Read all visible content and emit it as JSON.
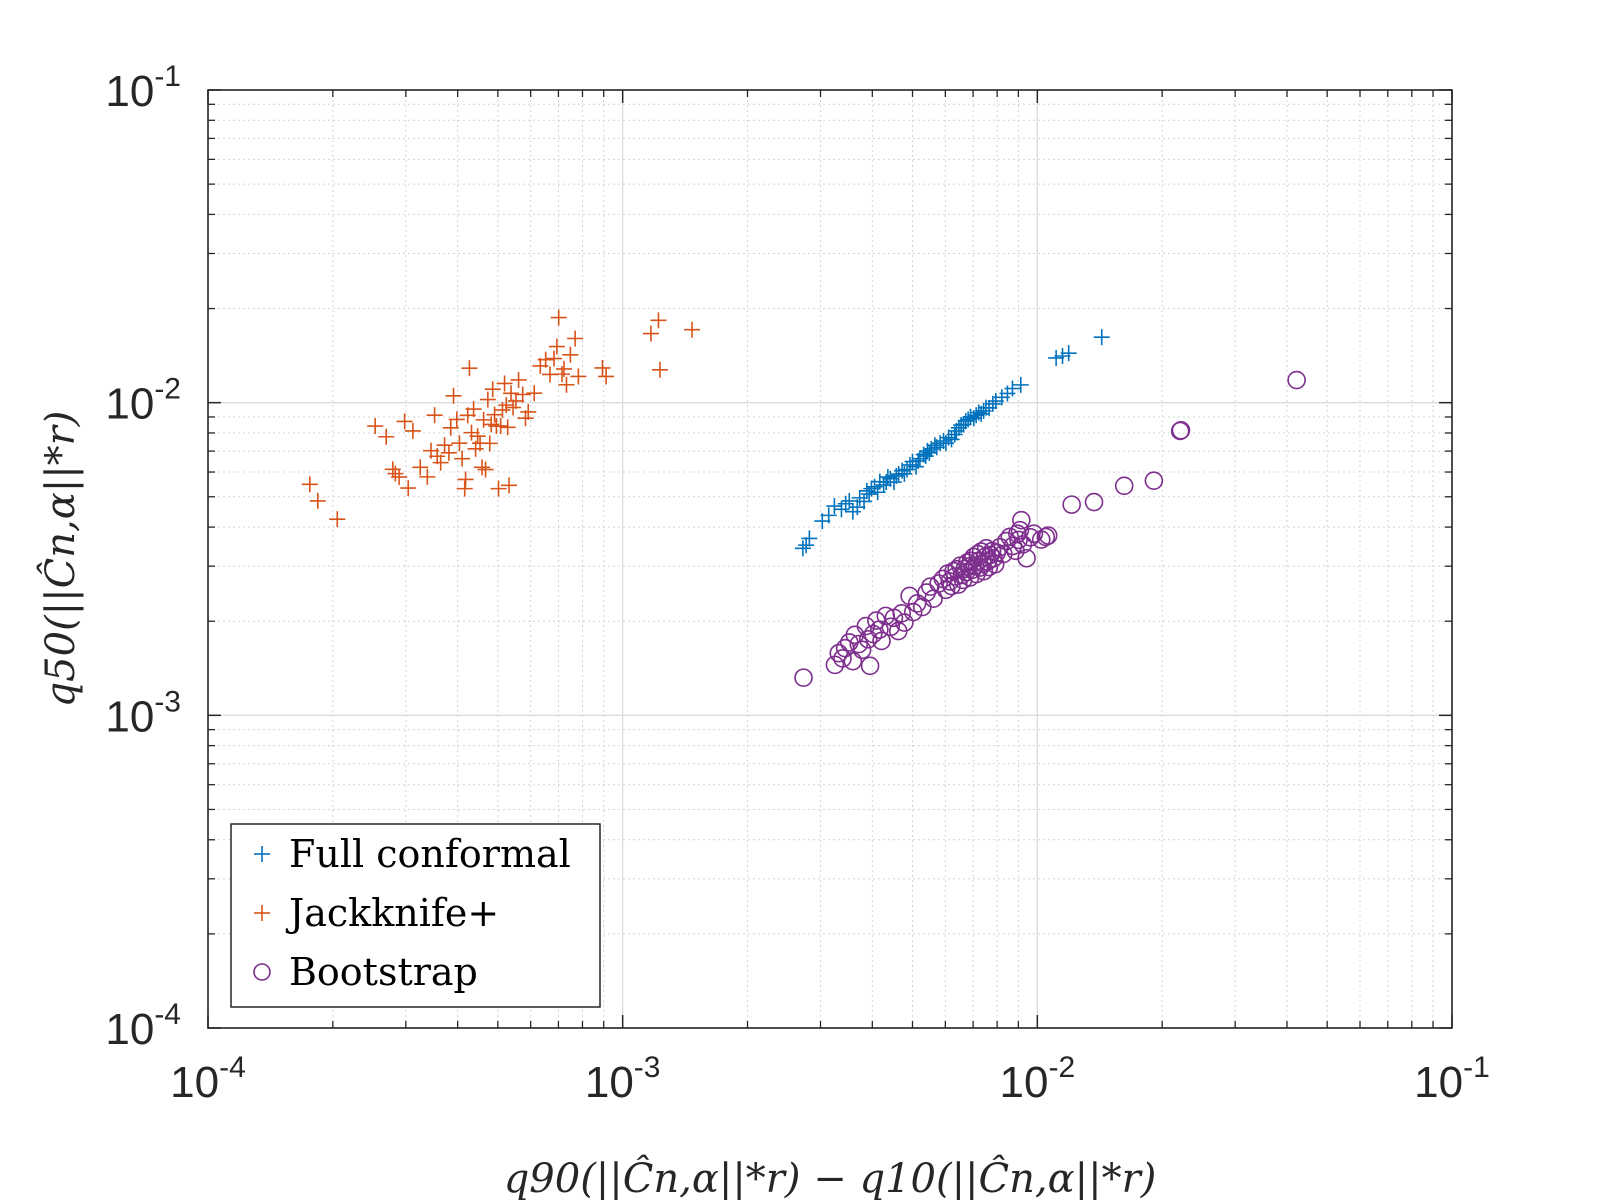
{
  "chart_data": {
    "type": "scatter",
    "xscale": "log",
    "yscale": "log",
    "xlim": [
      0.0001,
      0.1
    ],
    "ylim": [
      0.0001,
      0.1
    ],
    "grid": true,
    "minor_grid": true,
    "legend_position": "bottom-left",
    "xlabel": "q90(||Ĉn,α||*r) − q10(||Ĉn,α||*r)",
    "ylabel": "q50(||Ĉn,α||*r)",
    "x_ticks": [
      {
        "value": 0.0001,
        "mantissa": "10",
        "exponent": "-4"
      },
      {
        "value": 0.001,
        "mantissa": "10",
        "exponent": "-3"
      },
      {
        "value": 0.01,
        "mantissa": "10",
        "exponent": "-2"
      },
      {
        "value": 0.1,
        "mantissa": "10",
        "exponent": "-1"
      }
    ],
    "y_ticks": [
      {
        "value": 0.0001,
        "mantissa": "10",
        "exponent": "-4"
      },
      {
        "value": 0.001,
        "mantissa": "10",
        "exponent": "-3"
      },
      {
        "value": 0.01,
        "mantissa": "10",
        "exponent": "-2"
      },
      {
        "value": 0.1,
        "mantissa": "10",
        "exponent": "-1"
      }
    ],
    "series": [
      {
        "name": "Full conformal",
        "marker": "plus",
        "color": "#0072BD",
        "x": [
          0.00272,
          0.00277,
          0.00282,
          0.00303,
          0.00314,
          0.00324,
          0.00337,
          0.00345,
          0.00352,
          0.00359,
          0.00368,
          0.00373,
          0.00382,
          0.00388,
          0.00393,
          0.00398,
          0.00405,
          0.00412,
          0.00417,
          0.00426,
          0.00432,
          0.00436,
          0.00442,
          0.00451,
          0.00457,
          0.00463,
          0.00472,
          0.00478,
          0.00485,
          0.00493,
          0.005,
          0.0051,
          0.00516,
          0.00521,
          0.00532,
          0.00538,
          0.00543,
          0.00549,
          0.00555,
          0.00566,
          0.00572,
          0.00583,
          0.00594,
          0.00602,
          0.00611,
          0.00621,
          0.00632,
          0.00638,
          0.00647,
          0.00655,
          0.00664,
          0.00672,
          0.00681,
          0.0069,
          0.00703,
          0.00712,
          0.00722,
          0.00732,
          0.00742,
          0.00752,
          0.00765,
          0.00781,
          0.00794,
          0.00821,
          0.00847,
          0.00871,
          0.00912,
          0.0111,
          0.0115,
          0.0119,
          0.0143
        ],
        "y": [
          0.00342,
          0.0035,
          0.00368,
          0.00418,
          0.00436,
          0.00467,
          0.00456,
          0.00475,
          0.00485,
          0.00448,
          0.00463,
          0.00496,
          0.00483,
          0.00522,
          0.0051,
          0.00531,
          0.00538,
          0.00517,
          0.00559,
          0.00545,
          0.00557,
          0.00578,
          0.00571,
          0.00557,
          0.00583,
          0.00591,
          0.00606,
          0.00592,
          0.00611,
          0.00632,
          0.00648,
          0.00624,
          0.00651,
          0.00662,
          0.00682,
          0.00675,
          0.00701,
          0.00691,
          0.00711,
          0.00731,
          0.0072,
          0.00742,
          0.00754,
          0.00742,
          0.00773,
          0.00763,
          0.00791,
          0.00812,
          0.00831,
          0.00848,
          0.00852,
          0.00873,
          0.00884,
          0.00901,
          0.00892,
          0.00912,
          0.0093,
          0.00921,
          0.00941,
          0.00964,
          0.00962,
          0.00991,
          0.01012,
          0.0104,
          0.0107,
          0.0111,
          0.0114,
          0.0139,
          0.0141,
          0.0144,
          0.0162
        ]
      },
      {
        "name": "Jackknife+",
        "marker": "plus",
        "color": "#D95319",
        "x": [
          0.000176,
          0.000184,
          0.000205,
          0.000253,
          0.000269,
          0.000279,
          0.000283,
          0.000289,
          0.000298,
          0.000304,
          0.000312,
          0.000325,
          0.000338,
          0.000345,
          0.000352,
          0.000357,
          0.000364,
          0.000372,
          0.000381,
          0.000385,
          0.000391,
          0.000398,
          0.000404,
          0.00041,
          0.000416,
          0.000418,
          0.000423,
          0.000427,
          0.000432,
          0.000437,
          0.000442,
          0.000447,
          0.000453,
          0.000458,
          0.000462,
          0.000467,
          0.000473,
          0.000478,
          0.000482,
          0.000486,
          0.000491,
          0.000496,
          0.000502,
          0.000508,
          0.000513,
          0.000519,
          0.000524,
          0.000528,
          0.000532,
          0.000538,
          0.000544,
          0.000553,
          0.000561,
          0.000574,
          0.000583,
          0.000592,
          0.000612,
          0.000633,
          0.000652,
          0.000668,
          0.000683,
          0.000694,
          0.000701,
          0.000714,
          0.000722,
          0.000732,
          0.000748,
          0.000768,
          0.000782,
          0.000894,
          0.000912,
          0.00117,
          0.00123,
          0.00122,
          0.00147
        ],
        "y": [
          0.00548,
          0.00485,
          0.00424,
          0.00842,
          0.00778,
          0.00612,
          0.00593,
          0.00578,
          0.00871,
          0.00533,
          0.00812,
          0.00621,
          0.00579,
          0.00702,
          0.00912,
          0.00674,
          0.00643,
          0.00731,
          0.00691,
          0.00831,
          0.01052,
          0.00884,
          0.00742,
          0.00662,
          0.00531,
          0.00568,
          0.00911,
          0.01289,
          0.00802,
          0.00954,
          0.00712,
          0.00781,
          0.00742,
          0.00621,
          0.00881,
          0.00611,
          0.01023,
          0.00741,
          0.00852,
          0.01104,
          0.00915,
          0.00842,
          0.00531,
          0.00842,
          0.00948,
          0.01152,
          0.00982,
          0.00834,
          0.00544,
          0.01071,
          0.00965,
          0.01013,
          0.01182,
          0.01062,
          0.00892,
          0.00934,
          0.01072,
          0.01311,
          0.01372,
          0.01231,
          0.01384,
          0.01512,
          0.01871,
          0.01234,
          0.01282,
          0.01141,
          0.01423,
          0.01604,
          0.01213,
          0.01291,
          0.01213,
          0.01663,
          0.01274,
          0.01834,
          0.01711
        ]
      },
      {
        "name": "Bootstrap",
        "marker": "circle",
        "color": "#7E2F8E",
        "x": [
          0.00273,
          0.00325,
          0.00332,
          0.00339,
          0.00344,
          0.00352,
          0.00359,
          0.00363,
          0.00371,
          0.00378,
          0.00386,
          0.00391,
          0.00395,
          0.00402,
          0.00409,
          0.00416,
          0.00421,
          0.00431,
          0.00443,
          0.00451,
          0.00462,
          0.00471,
          0.00478,
          0.00492,
          0.00502,
          0.00513,
          0.00528,
          0.00541,
          0.00552,
          0.00562,
          0.00578,
          0.00592,
          0.00602,
          0.00608,
          0.00615,
          0.00621,
          0.00628,
          0.00634,
          0.00639,
          0.00645,
          0.00652,
          0.00658,
          0.00662,
          0.00668,
          0.00673,
          0.00678,
          0.00683,
          0.00688,
          0.00692,
          0.00697,
          0.00702,
          0.00708,
          0.00713,
          0.00718,
          0.00722,
          0.00728,
          0.00732,
          0.00738,
          0.00743,
          0.00748,
          0.00753,
          0.00759,
          0.00764,
          0.00771,
          0.00778,
          0.00784,
          0.00791,
          0.00798,
          0.00812,
          0.00828,
          0.00842,
          0.00858,
          0.00873,
          0.00886,
          0.00895,
          0.00901,
          0.00908,
          0.00915,
          0.00923,
          0.00942,
          0.00962,
          0.00981,
          0.01022,
          0.01048,
          0.01062,
          0.0121,
          0.0137,
          0.0162,
          0.0191,
          0.0221,
          0.0222,
          0.0422
        ],
        "y": [
          0.00132,
          0.00145,
          0.00158,
          0.00152,
          0.00164,
          0.00171,
          0.00149,
          0.00181,
          0.00169,
          0.00162,
          0.00193,
          0.00175,
          0.00144,
          0.00182,
          0.00201,
          0.00188,
          0.00173,
          0.00208,
          0.00192,
          0.00205,
          0.00186,
          0.00212,
          0.00198,
          0.00241,
          0.00214,
          0.00228,
          0.00222,
          0.00247,
          0.00258,
          0.00236,
          0.00264,
          0.00273,
          0.00252,
          0.00284,
          0.00268,
          0.00259,
          0.00289,
          0.00278,
          0.00293,
          0.00262,
          0.00301,
          0.00281,
          0.00271,
          0.00294,
          0.00287,
          0.00308,
          0.00299,
          0.00276,
          0.00312,
          0.00292,
          0.00321,
          0.00301,
          0.00283,
          0.00328,
          0.00312,
          0.00297,
          0.00334,
          0.00306,
          0.00289,
          0.00321,
          0.00342,
          0.00311,
          0.00298,
          0.00326,
          0.00335,
          0.00318,
          0.00304,
          0.00331,
          0.00345,
          0.00328,
          0.00361,
          0.00372,
          0.00348,
          0.00336,
          0.00381,
          0.00364,
          0.00391,
          0.00421,
          0.00352,
          0.00318,
          0.00371,
          0.00381,
          0.00365,
          0.00372,
          0.00376,
          0.00472,
          0.00481,
          0.00542,
          0.00563,
          0.00812,
          0.00816,
          0.01181
        ]
      }
    ]
  }
}
